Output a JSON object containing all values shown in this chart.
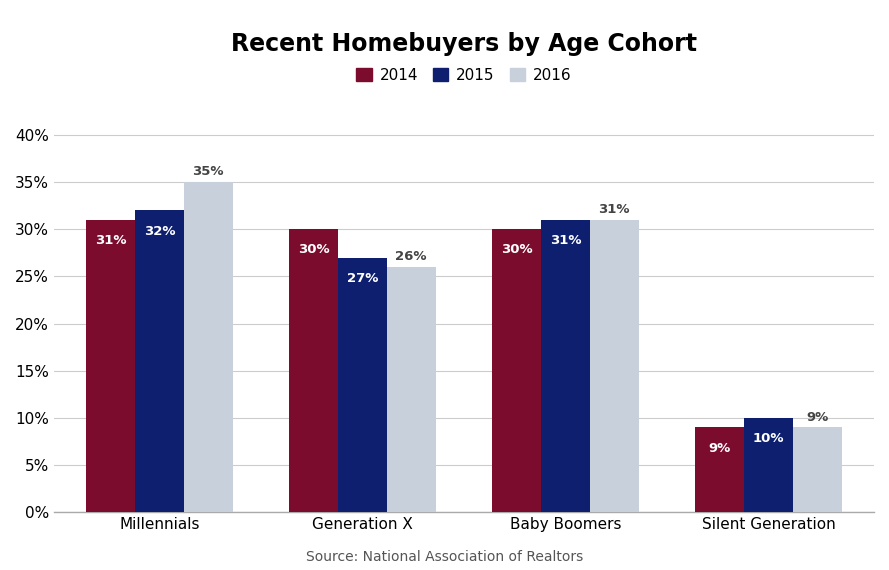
{
  "title": "Recent Homebuyers by Age Cohort",
  "categories": [
    "Millennials",
    "Generation X",
    "Baby Boomers",
    "Silent Generation"
  ],
  "series": {
    "2014": [
      31,
      30,
      30,
      9
    ],
    "2015": [
      32,
      27,
      31,
      10
    ],
    "2016": [
      35,
      26,
      31,
      9
    ]
  },
  "colors": {
    "2014": "#7B0C2E",
    "2015": "#0D1F6E",
    "2016": "#C8D0DC"
  },
  "label_colors": {
    "2014": "#FFFFFF",
    "2015": "#FFFFFF",
    "2016": "#555555"
  },
  "ylim": [
    0,
    43
  ],
  "yticks": [
    0,
    5,
    10,
    15,
    20,
    25,
    30,
    35,
    40
  ],
  "ytick_labels": [
    "0%",
    "5%",
    "10%",
    "15%",
    "20%",
    "25%",
    "30%",
    "35%",
    "40%"
  ],
  "legend_labels": [
    "2014",
    "2015",
    "2016"
  ],
  "source_text": "Source: National Association of Realtors",
  "background_color": "#FFFFFF",
  "grid_color": "#CCCCCC",
  "title_fontsize": 17,
  "label_fontsize": 9.5,
  "tick_fontsize": 11,
  "source_fontsize": 10,
  "bar_width": 0.24,
  "legend_fontsize": 11
}
